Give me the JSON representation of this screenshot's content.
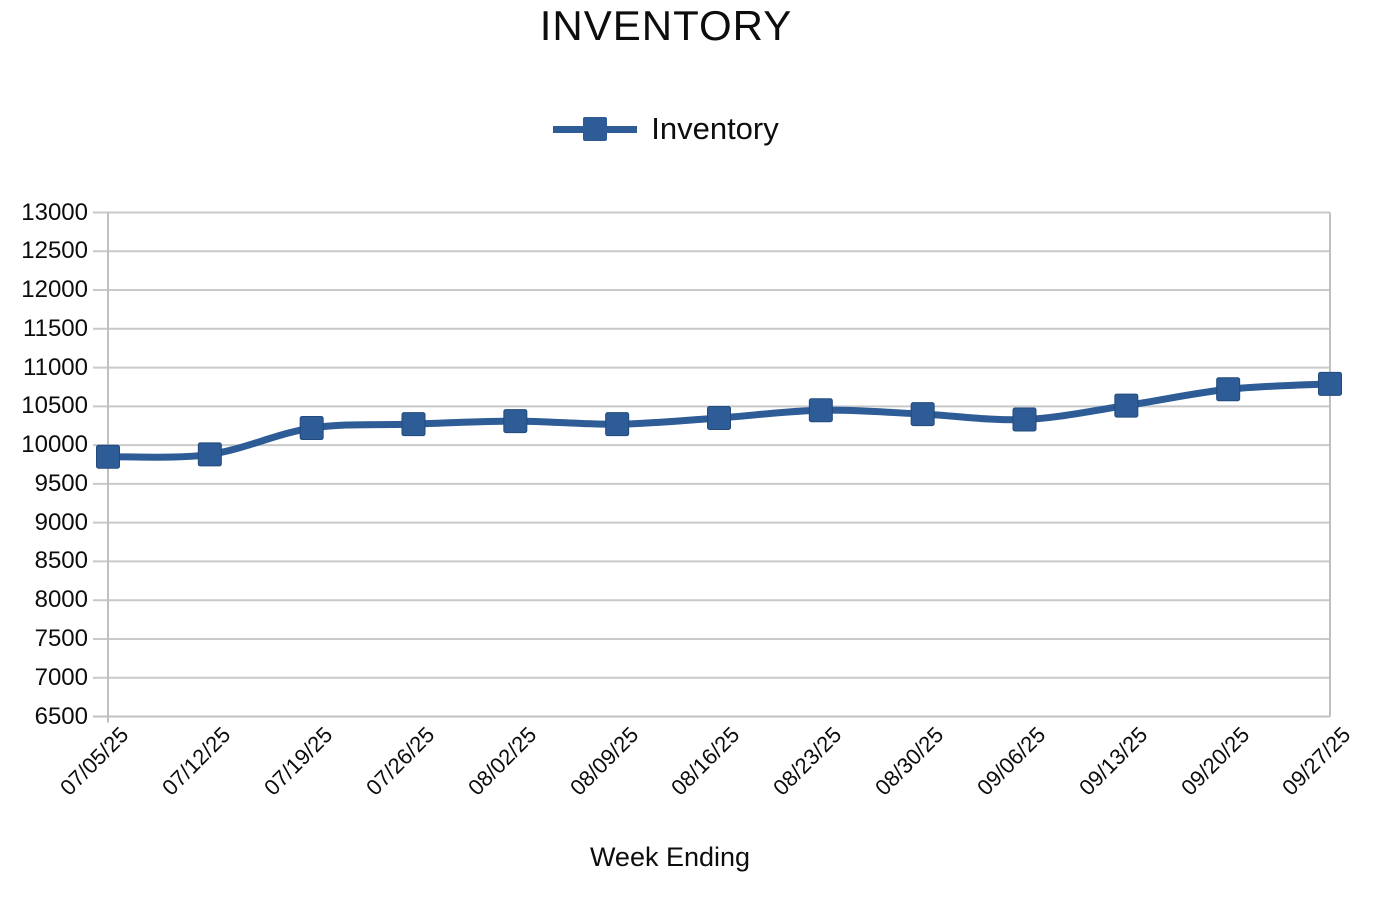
{
  "chart_data": {
    "type": "line",
    "title": "INVENTORY",
    "xlabel": "Week Ending",
    "ylabel": "",
    "ylim": [
      6500,
      13000
    ],
    "ytick_step": 500,
    "grid": true,
    "legend_position": "top-center",
    "categories": [
      "07/05/25",
      "07/12/25",
      "07/19/25",
      "07/26/25",
      "08/02/25",
      "08/09/25",
      "08/16/25",
      "08/23/25",
      "08/30/25",
      "09/06/25",
      "09/13/25",
      "09/20/25",
      "09/27/25"
    ],
    "series": [
      {
        "name": "Inventory",
        "marker": "square",
        "color": "#2D5C96",
        "values": [
          9850,
          9880,
          10220,
          10270,
          10310,
          10270,
          10350,
          10450,
          10400,
          10330,
          10510,
          10720,
          10790
        ]
      }
    ],
    "colors": {
      "line": "#2D5C96",
      "gridline": "#C9C9C9",
      "axis": "#C0C0C0",
      "text": "#0d0d0d"
    }
  }
}
